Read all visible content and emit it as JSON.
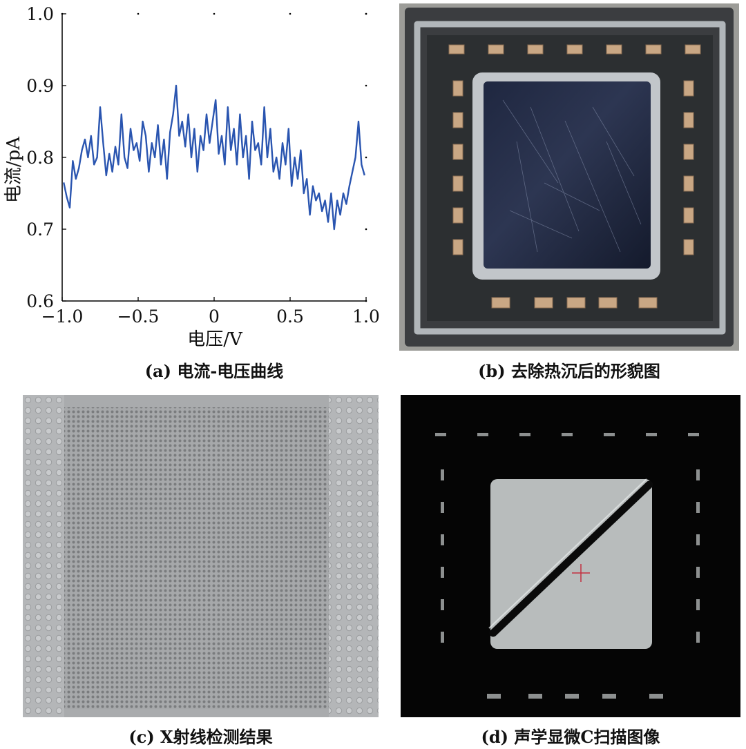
{
  "figure": {
    "panels": [
      {
        "caption": "(a) 电流-电压曲线"
      },
      {
        "caption": "(b) 去除热沉后的形貌图"
      },
      {
        "caption": "(c) X射线检测结果"
      },
      {
        "caption": "(d) 声学显微C扫描图像"
      }
    ]
  },
  "chart_data": {
    "type": "line",
    "xlabel": "电压/V",
    "ylabel": "电流/pA",
    "xlim": [
      -1.0,
      1.0
    ],
    "ylim": [
      0.6,
      1.0
    ],
    "xticks": [
      "−1.0",
      "−0.5",
      "0",
      "0.5",
      "1.0"
    ],
    "yticks": [
      "0.6",
      "0.7",
      "0.8",
      "0.9",
      "1.0"
    ],
    "grid": false,
    "color": "#2a55b0",
    "x": [
      -0.99,
      -0.97,
      -0.95,
      -0.93,
      -0.91,
      -0.89,
      -0.87,
      -0.85,
      -0.83,
      -0.81,
      -0.79,
      -0.77,
      -0.75,
      -0.73,
      -0.71,
      -0.69,
      -0.67,
      -0.65,
      -0.63,
      -0.61,
      -0.59,
      -0.57,
      -0.55,
      -0.53,
      -0.51,
      -0.49,
      -0.47,
      -0.45,
      -0.43,
      -0.41,
      -0.39,
      -0.37,
      -0.35,
      -0.33,
      -0.31,
      -0.29,
      -0.27,
      -0.25,
      -0.23,
      -0.21,
      -0.19,
      -0.17,
      -0.15,
      -0.13,
      -0.11,
      -0.09,
      -0.07,
      -0.05,
      -0.03,
      -0.01,
      0.01,
      0.03,
      0.05,
      0.07,
      0.09,
      0.11,
      0.13,
      0.15,
      0.17,
      0.19,
      0.21,
      0.23,
      0.25,
      0.27,
      0.29,
      0.31,
      0.33,
      0.35,
      0.37,
      0.39,
      0.41,
      0.43,
      0.45,
      0.47,
      0.49,
      0.51,
      0.53,
      0.55,
      0.57,
      0.59,
      0.61,
      0.63,
      0.65,
      0.67,
      0.69,
      0.71,
      0.73,
      0.75,
      0.77,
      0.79,
      0.81,
      0.83,
      0.85,
      0.87,
      0.89,
      0.91,
      0.93,
      0.95,
      0.97,
      0.99
    ],
    "values": [
      0.765,
      0.745,
      0.73,
      0.795,
      0.77,
      0.785,
      0.81,
      0.825,
      0.8,
      0.83,
      0.79,
      0.8,
      0.87,
      0.82,
      0.775,
      0.805,
      0.78,
      0.815,
      0.79,
      0.86,
      0.8,
      0.785,
      0.84,
      0.81,
      0.82,
      0.795,
      0.85,
      0.83,
      0.78,
      0.82,
      0.8,
      0.845,
      0.79,
      0.825,
      0.77,
      0.835,
      0.86,
      0.9,
      0.83,
      0.85,
      0.815,
      0.86,
      0.8,
      0.84,
      0.78,
      0.83,
      0.81,
      0.86,
      0.82,
      0.85,
      0.88,
      0.805,
      0.83,
      0.79,
      0.87,
      0.81,
      0.84,
      0.79,
      0.86,
      0.8,
      0.83,
      0.77,
      0.85,
      0.81,
      0.82,
      0.79,
      0.87,
      0.8,
      0.84,
      0.78,
      0.8,
      0.77,
      0.82,
      0.79,
      0.84,
      0.76,
      0.8,
      0.77,
      0.81,
      0.75,
      0.77,
      0.72,
      0.76,
      0.74,
      0.75,
      0.725,
      0.74,
      0.71,
      0.75,
      0.7,
      0.74,
      0.72,
      0.75,
      0.735,
      0.76,
      0.78,
      0.8,
      0.85,
      0.79,
      0.775
    ]
  }
}
